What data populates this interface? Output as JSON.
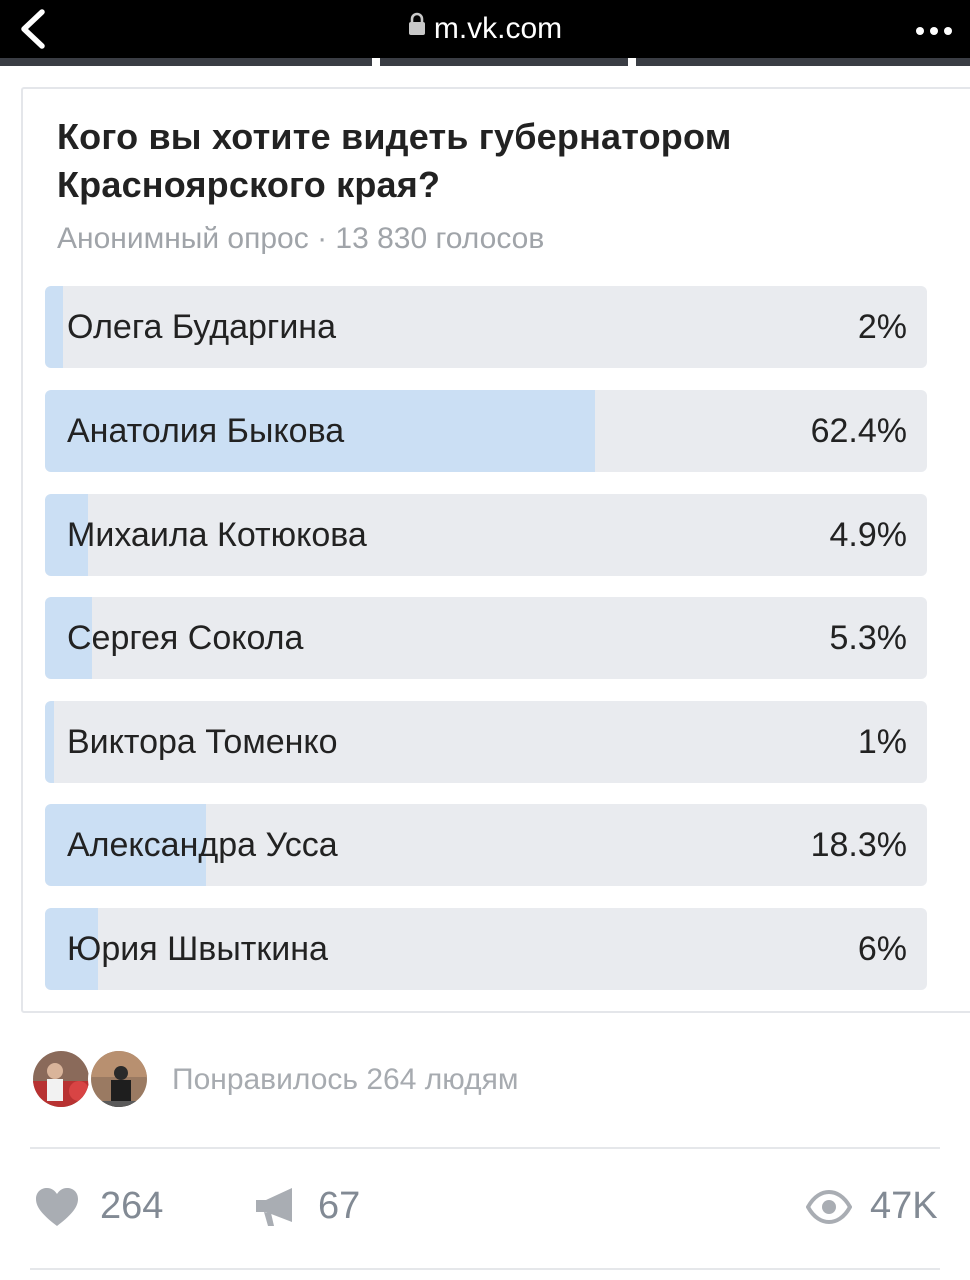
{
  "browser": {
    "url": "m.vk.com",
    "back_icon": "chevron-left-icon",
    "lock_icon": "lock-icon",
    "more_icon": "more-horizontal-icon"
  },
  "poll": {
    "title": "Кого вы хотите видеть губернатором Красноярского края?",
    "meta": "Анонимный опрос · 13 830 голосов",
    "colors": {
      "bar_bg": "#e9ebef",
      "bar_fill": "#cbdff4"
    },
    "options": [
      {
        "label": "Олега Бударгина",
        "percent_text": "2%",
        "percent": 2
      },
      {
        "label": "Анатолия Быкова",
        "percent_text": "62.4%",
        "percent": 62.4
      },
      {
        "label": "Михаила Котюкова",
        "percent_text": "4.9%",
        "percent": 4.9
      },
      {
        "label": "Сергея Сокола",
        "percent_text": "5.3%",
        "percent": 5.3
      },
      {
        "label": "Виктора Томенко",
        "percent_text": "1%",
        "percent": 1
      },
      {
        "label": "Александра Усса",
        "percent_text": "18.3%",
        "percent": 18.3
      },
      {
        "label": "Юрия Швыткина",
        "percent_text": "6%",
        "percent": 6
      }
    ]
  },
  "likes": {
    "liked_text": "Понравилось 264 людям"
  },
  "actions": {
    "like_icon": "heart-icon",
    "like_count": "264",
    "share_icon": "megaphone-icon",
    "share_count": "67",
    "views_icon": "eye-icon",
    "views_count": "47K"
  }
}
